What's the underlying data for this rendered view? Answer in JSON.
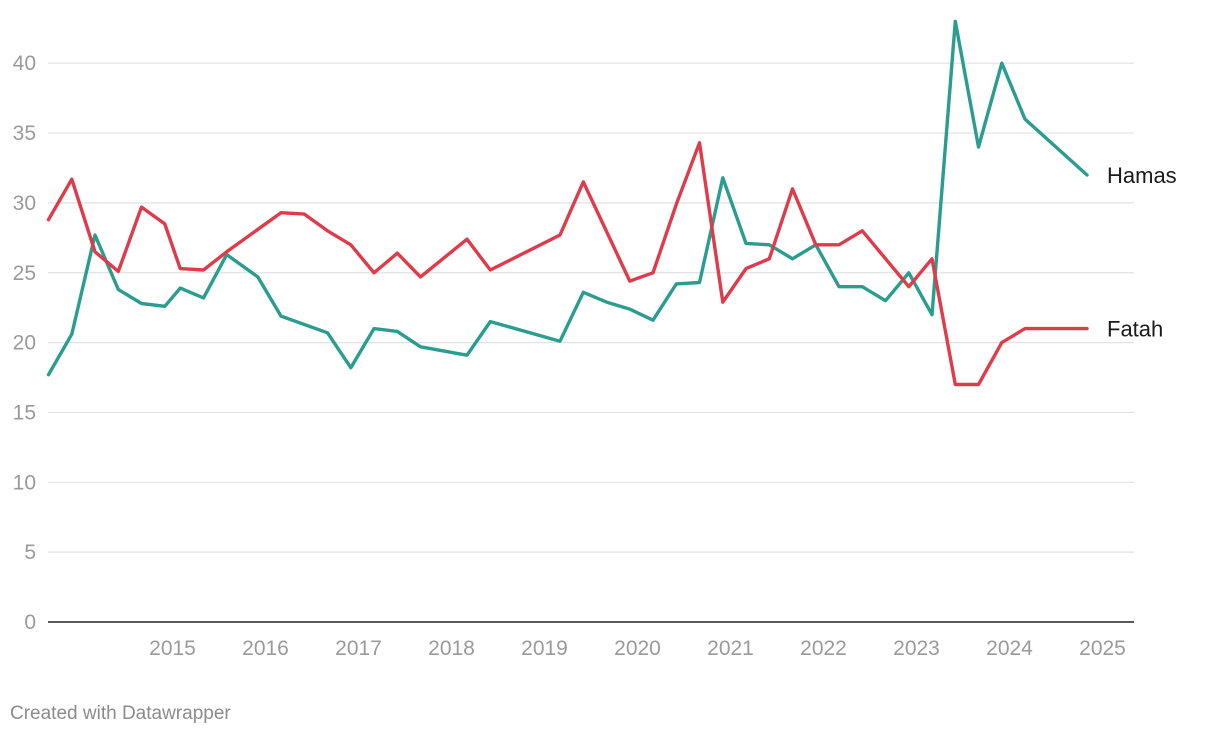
{
  "chart_data": {
    "type": "line",
    "title": "",
    "xlabel": "",
    "ylabel": "",
    "ylim": [
      0,
      43
    ],
    "y_ticks": [
      0,
      5,
      10,
      15,
      20,
      25,
      30,
      35,
      40
    ],
    "x_ticks": [
      "2015",
      "2016",
      "2017",
      "2018",
      "2019",
      "2020",
      "2021",
      "2022",
      "2023",
      "2024",
      "2025"
    ],
    "x_range": [
      "2014-03",
      "2025-06"
    ],
    "grid": "horizontal",
    "legend": "direct labels at line ends",
    "series": [
      {
        "name": "Hamas",
        "color": "#2a9d8f",
        "points": [
          {
            "x": "2014-03",
            "y": 17.7
          },
          {
            "x": "2014-06",
            "y": 20.6
          },
          {
            "x": "2014-09",
            "y": 27.7
          },
          {
            "x": "2014-12",
            "y": 23.8
          },
          {
            "x": "2015-03",
            "y": 22.8
          },
          {
            "x": "2015-06",
            "y": 22.6
          },
          {
            "x": "2015-08",
            "y": 23.9
          },
          {
            "x": "2015-11",
            "y": 23.2
          },
          {
            "x": "2016-02",
            "y": 26.3
          },
          {
            "x": "2016-06",
            "y": 24.7
          },
          {
            "x": "2016-09",
            "y": 21.9
          },
          {
            "x": "2017-03",
            "y": 20.7
          },
          {
            "x": "2017-06",
            "y": 18.2
          },
          {
            "x": "2017-09",
            "y": 21.0
          },
          {
            "x": "2017-12",
            "y": 20.8
          },
          {
            "x": "2018-03",
            "y": 19.7
          },
          {
            "x": "2018-09",
            "y": 19.1
          },
          {
            "x": "2018-12",
            "y": 21.5
          },
          {
            "x": "2019-09",
            "y": 20.1
          },
          {
            "x": "2019-12",
            "y": 23.6
          },
          {
            "x": "2020-03",
            "y": 22.9
          },
          {
            "x": "2020-06",
            "y": 22.4
          },
          {
            "x": "2020-09",
            "y": 21.6
          },
          {
            "x": "2020-12",
            "y": 24.2
          },
          {
            "x": "2021-03",
            "y": 24.3
          },
          {
            "x": "2021-06",
            "y": 31.8
          },
          {
            "x": "2021-09",
            "y": 27.1
          },
          {
            "x": "2021-12",
            "y": 27.0
          },
          {
            "x": "2022-03",
            "y": 26.0
          },
          {
            "x": "2022-06",
            "y": 27.0
          },
          {
            "x": "2022-09",
            "y": 24.0
          },
          {
            "x": "2022-12",
            "y": 24.0
          },
          {
            "x": "2023-03",
            "y": 23.0
          },
          {
            "x": "2023-06",
            "y": 25.0
          },
          {
            "x": "2023-09",
            "y": 22.0
          },
          {
            "x": "2023-12",
            "y": 43.0
          },
          {
            "x": "2024-03",
            "y": 34.0
          },
          {
            "x": "2024-06",
            "y": 40.0
          },
          {
            "x": "2024-09",
            "y": 36.0
          },
          {
            "x": "2025-05",
            "y": 32.0
          }
        ]
      },
      {
        "name": "Fatah",
        "color": "#e03b4b",
        "points": [
          {
            "x": "2014-03",
            "y": 28.8
          },
          {
            "x": "2014-06",
            "y": 31.7
          },
          {
            "x": "2014-09",
            "y": 26.5
          },
          {
            "x": "2014-12",
            "y": 25.1
          },
          {
            "x": "2015-03",
            "y": 29.7
          },
          {
            "x": "2015-06",
            "y": 28.5
          },
          {
            "x": "2015-08",
            "y": 25.3
          },
          {
            "x": "2015-11",
            "y": 25.2
          },
          {
            "x": "2016-02",
            "y": 26.5
          },
          {
            "x": "2016-09",
            "y": 29.3
          },
          {
            "x": "2016-12",
            "y": 29.2
          },
          {
            "x": "2017-03",
            "y": 28.0
          },
          {
            "x": "2017-06",
            "y": 27.0
          },
          {
            "x": "2017-09",
            "y": 25.0
          },
          {
            "x": "2017-12",
            "y": 26.4
          },
          {
            "x": "2018-03",
            "y": 24.7
          },
          {
            "x": "2018-09",
            "y": 27.4
          },
          {
            "x": "2018-12",
            "y": 25.2
          },
          {
            "x": "2019-09",
            "y": 27.7
          },
          {
            "x": "2019-12",
            "y": 31.5
          },
          {
            "x": "2020-06",
            "y": 24.4
          },
          {
            "x": "2020-09",
            "y": 25.0
          },
          {
            "x": "2020-12",
            "y": 29.9
          },
          {
            "x": "2021-03",
            "y": 34.3
          },
          {
            "x": "2021-06",
            "y": 22.9
          },
          {
            "x": "2021-09",
            "y": 25.3
          },
          {
            "x": "2021-12",
            "y": 26.0
          },
          {
            "x": "2022-03",
            "y": 31.0
          },
          {
            "x": "2022-06",
            "y": 27.0
          },
          {
            "x": "2022-09",
            "y": 27.0
          },
          {
            "x": "2022-12",
            "y": 28.0
          },
          {
            "x": "2023-06",
            "y": 24.0
          },
          {
            "x": "2023-09",
            "y": 26.0
          },
          {
            "x": "2023-12",
            "y": 17.0
          },
          {
            "x": "2024-03",
            "y": 17.0
          },
          {
            "x": "2024-06",
            "y": 20.0
          },
          {
            "x": "2024-09",
            "y": 21.0
          },
          {
            "x": "2025-05",
            "y": 21.0
          }
        ]
      }
    ]
  },
  "footer": {
    "credit": "Created with Datawrapper"
  }
}
